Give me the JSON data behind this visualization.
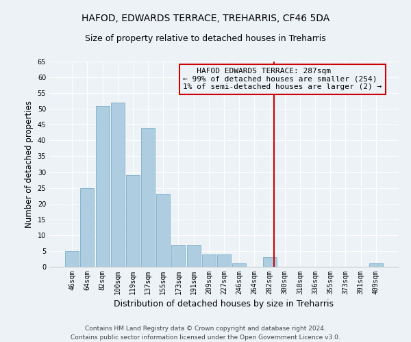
{
  "title": "HAFOD, EDWARDS TERRACE, TREHARRIS, CF46 5DA",
  "subtitle": "Size of property relative to detached houses in Treharris",
  "xlabel": "Distribution of detached houses by size in Treharris",
  "ylabel": "Number of detached properties",
  "bar_labels": [
    "46sqm",
    "64sqm",
    "82sqm",
    "100sqm",
    "119sqm",
    "137sqm",
    "155sqm",
    "173sqm",
    "191sqm",
    "209sqm",
    "227sqm",
    "246sqm",
    "264sqm",
    "282sqm",
    "300sqm",
    "318sqm",
    "336sqm",
    "355sqm",
    "373sqm",
    "391sqm",
    "409sqm"
  ],
  "bar_values": [
    5,
    25,
    51,
    52,
    29,
    44,
    23,
    7,
    7,
    4,
    4,
    1,
    0,
    3,
    0,
    0,
    0,
    0,
    0,
    0,
    1
  ],
  "bar_color": "#aecde0",
  "bar_edge_color": "#7baec8",
  "ylim": [
    0,
    65
  ],
  "yticks": [
    0,
    5,
    10,
    15,
    20,
    25,
    30,
    35,
    40,
    45,
    50,
    55,
    60,
    65
  ],
  "vline_color": "#cc0000",
  "vline_x": 13.5,
  "annotation_text_line1": "   HAFOD EDWARDS TERRACE: 287sqm",
  "annotation_text_line2": "← 99% of detached houses are smaller (254)",
  "annotation_text_line3": "1% of semi-detached houses are larger (2) →",
  "footer_line1": "Contains HM Land Registry data © Crown copyright and database right 2024.",
  "footer_line2": "Contains public sector information licensed under the Open Government Licence v3.0.",
  "background_color": "#edf2f7",
  "grid_color": "#ffffff",
  "title_fontsize": 10,
  "subtitle_fontsize": 9,
  "ylabel_fontsize": 8.5,
  "xlabel_fontsize": 9,
  "tick_fontsize": 7,
  "annotation_fontsize": 8,
  "footer_fontsize": 6.5
}
